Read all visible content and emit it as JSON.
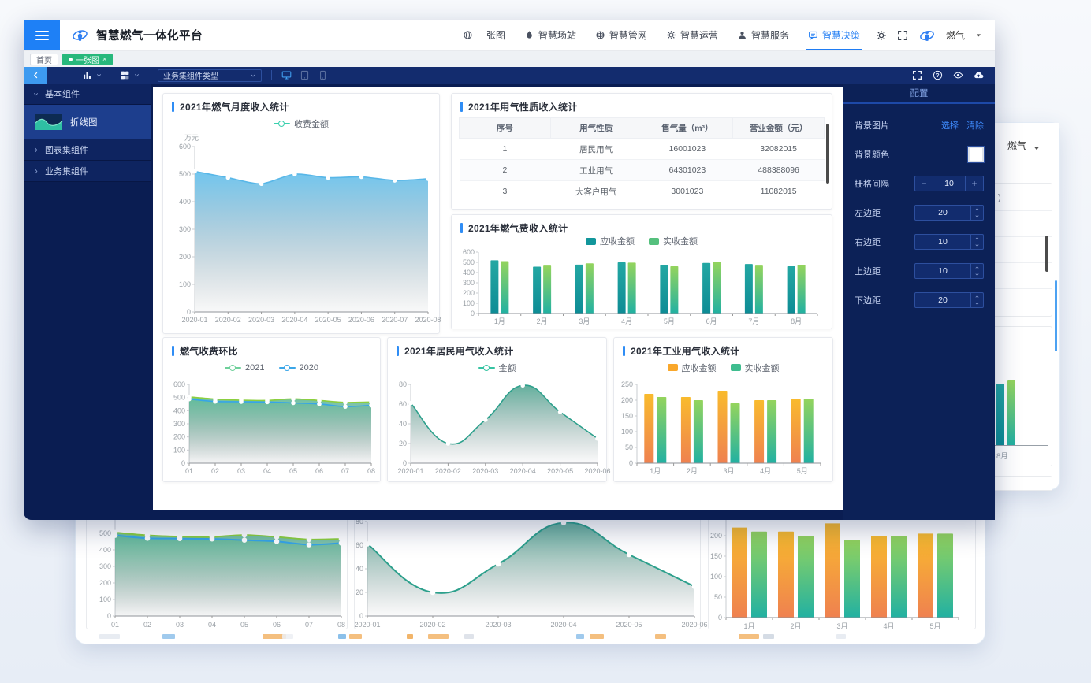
{
  "topbar": {
    "title": "智慧燃气一体化平台",
    "brand": "燃气",
    "nav": [
      {
        "label": "一张图",
        "icon": "globe"
      },
      {
        "label": "智慧场站",
        "icon": "station"
      },
      {
        "label": "智慧管网",
        "icon": "network"
      },
      {
        "label": "智慧运营",
        "icon": "gear"
      },
      {
        "label": "智慧服务",
        "icon": "service"
      },
      {
        "label": "智慧决策",
        "icon": "decision",
        "active": true
      }
    ]
  },
  "tabs": [
    {
      "label": "首页",
      "active": false
    },
    {
      "label": "一张图",
      "active": true,
      "dot": true,
      "closable": true
    }
  ],
  "toolbar": {
    "component_type_select": "业务集组件类型"
  },
  "sidebar": {
    "sections": [
      {
        "label": "基本组件",
        "expanded": true,
        "items": [
          {
            "label": "折线图",
            "selected": true
          }
        ]
      },
      {
        "label": "图表集组件",
        "expanded": false,
        "items": []
      },
      {
        "label": "业务集组件",
        "expanded": false,
        "items": []
      }
    ]
  },
  "config_panel": {
    "title": "配置",
    "fields": [
      {
        "label": "背景图片",
        "type": "links",
        "links": [
          "选择",
          "清除"
        ]
      },
      {
        "label": "背景颜色",
        "type": "swatch",
        "value": "#ffffff"
      },
      {
        "label": "栅格间隔",
        "type": "stepper",
        "value": "10"
      },
      {
        "label": "左边距",
        "type": "number",
        "value": "20"
      },
      {
        "label": "右边距",
        "type": "number",
        "value": "10"
      },
      {
        "label": "上边距",
        "type": "number",
        "value": "10"
      },
      {
        "label": "下边距",
        "type": "number",
        "value": "20"
      }
    ]
  },
  "background_window": {
    "brand": "燃气",
    "bar_month_label": "8月",
    "row_fragment": ")"
  },
  "colors": {
    "accent_blue": "#1f7cf3",
    "tab_green": "#27b87c",
    "panel_accent": "#2f8df5"
  },
  "chart_data": [
    {
      "id": "monthly-income",
      "type": "area",
      "title": "2021年燃气月度收入统计",
      "unit": "万元",
      "legend": [
        {
          "label": "收费金额",
          "marker": "line",
          "color": "#3ad0ae"
        }
      ],
      "x": [
        "2020-01",
        "2020-02",
        "2020-03",
        "2020-04",
        "2020-05",
        "2020-06",
        "2020-07",
        "2020-08"
      ],
      "series": [
        {
          "name": "收费金额",
          "values": [
            510,
            487,
            465,
            500,
            487,
            490,
            477,
            483
          ],
          "line": "#58b7e8",
          "fill": [
            "rgba(105,195,238,0.95)",
            "rgba(130,140,145,0.05)"
          ]
        }
      ],
      "ylim": [
        0,
        600
      ],
      "yticks": [
        0,
        100,
        200,
        300,
        400,
        500,
        600
      ],
      "grid": false,
      "legend_position": "top"
    },
    {
      "id": "usage-table",
      "type": "table",
      "title": "2021年用气性质收入统计",
      "columns": [
        "序号",
        "用气性质",
        "售气量（m³）",
        "营业金额（元）"
      ],
      "rows": [
        [
          "1",
          "居民用气",
          "16001023",
          "32082015"
        ],
        [
          "2",
          "工业用气",
          "64301023",
          "488388096"
        ],
        [
          "3",
          "大客户用气",
          "3001023",
          "11082015"
        ]
      ]
    },
    {
      "id": "fee-income",
      "type": "bar",
      "title": "2021年燃气费收入统计",
      "legend": [
        {
          "label": "应收金额",
          "marker": "rect",
          "color": "#12969b"
        },
        {
          "label": "实收金额",
          "marker": "rect",
          "color": "#55c07d"
        }
      ],
      "categories": [
        "1月",
        "2月",
        "3月",
        "4月",
        "5月",
        "6月",
        "7月",
        "8月"
      ],
      "series": [
        {
          "name": "应收金额",
          "values": [
            520,
            458,
            478,
            500,
            472,
            494,
            484,
            462
          ],
          "colors": [
            "#23a7a3",
            "#0e8c95"
          ]
        },
        {
          "name": "实收金额",
          "values": [
            512,
            468,
            490,
            497,
            462,
            505,
            468,
            473
          ],
          "colors": [
            "#94d45d",
            "#22b1a2"
          ]
        }
      ],
      "ylim": [
        0,
        600
      ],
      "yticks": [
        0,
        100,
        200,
        300,
        400,
        500,
        600
      ],
      "grid": false,
      "legend_position": "top"
    },
    {
      "id": "fee-mom",
      "type": "area",
      "title": "燃气收费环比",
      "legend": [
        {
          "label": "2021",
          "marker": "line",
          "color": "#6ed09a"
        },
        {
          "label": "2020",
          "marker": "line",
          "color": "#3aa6e8"
        }
      ],
      "x": [
        "01",
        "02",
        "03",
        "04",
        "05",
        "06",
        "07",
        "08"
      ],
      "series": [
        {
          "name": "2021",
          "values": [
            505,
            488,
            480,
            478,
            490,
            478,
            463,
            466
          ],
          "line": "#8ccf3e",
          "fill": [
            "rgba(90,185,150,0.9)",
            "rgba(130,140,145,0.05)"
          ]
        },
        {
          "name": "2020",
          "values": [
            488,
            470,
            468,
            466,
            459,
            451,
            431,
            441
          ],
          "line": "#36a5e8",
          "fill": [
            "rgba(90,185,150,0.5)",
            "rgba(130,140,145,0.03)"
          ]
        }
      ],
      "ylim": [
        0,
        600
      ],
      "yticks": [
        0,
        100,
        200,
        300,
        400,
        500,
        600
      ],
      "grid": false,
      "legend_position": "top"
    },
    {
      "id": "resident-income",
      "type": "area",
      "title": "2021年居民用气收入统计",
      "legend": [
        {
          "label": "金额",
          "marker": "line",
          "color": "#35c3a2"
        }
      ],
      "x": [
        "2020-01",
        "2020-02",
        "2020-03",
        "2020-04",
        "2020-05",
        "2020-06"
      ],
      "series": [
        {
          "name": "金额",
          "values": [
            61,
            20,
            44,
            79,
            52,
            25
          ],
          "smooth": true,
          "line": "#2da08c",
          "fill": [
            "rgba(72,162,140,0.85)",
            "rgba(130,140,145,0.04)"
          ]
        }
      ],
      "ylim": [
        0,
        80
      ],
      "yticks": [
        0,
        20,
        40,
        60,
        80
      ],
      "grid": false,
      "legend_position": "top"
    },
    {
      "id": "industry-income",
      "type": "bar",
      "title": "2021年工业用气收入统计",
      "legend": [
        {
          "label": "应收金额",
          "marker": "rect",
          "color": "#f9a72b"
        },
        {
          "label": "实收金额",
          "marker": "rect",
          "color": "#3fbd8f"
        }
      ],
      "categories": [
        "1月",
        "2月",
        "3月",
        "4月",
        "5月"
      ],
      "series": [
        {
          "name": "应收金额",
          "values": [
            220,
            210,
            230,
            200,
            205
          ],
          "colors": [
            "#f9bb2d",
            "#ef8150"
          ]
        },
        {
          "name": "实收金额",
          "values": [
            210,
            200,
            190,
            200,
            205
          ],
          "colors": [
            "#94d45d",
            "#22b1a2"
          ]
        }
      ],
      "ylim": [
        0,
        250
      ],
      "yticks": [
        0,
        50,
        100,
        150,
        200,
        250
      ],
      "grid": false,
      "legend_position": "top"
    }
  ]
}
